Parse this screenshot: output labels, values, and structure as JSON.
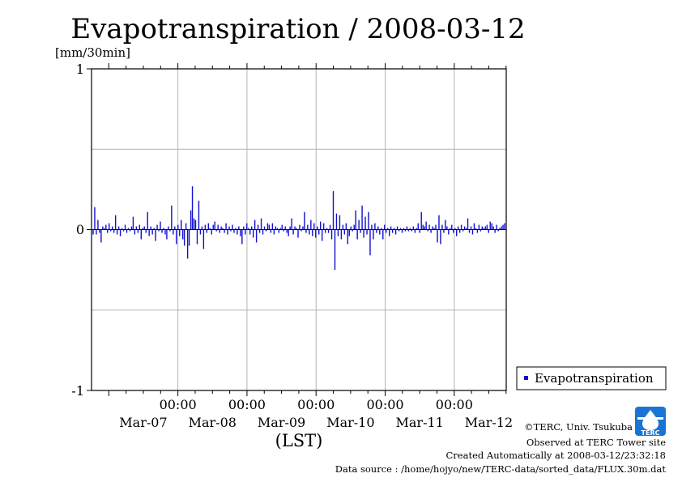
{
  "colors": {
    "series": "#1010cc",
    "grid": "#b4b4b4",
    "axis": "#000000",
    "logo": "#1a75d2"
  },
  "chart_data": {
    "type": "bar",
    "title": "Evapotranspiration / 2008-03-12",
    "unit_label": "[mm/30min]",
    "xlabel": "(LST)",
    "ylabel": "",
    "ylim": [
      -1,
      1
    ],
    "yticks": [
      "1",
      "0",
      "-1"
    ],
    "xlim_days": [
      0,
      6
    ],
    "x_time_label": "00:00",
    "x_date_labels": [
      "Mar-07",
      "Mar-08",
      "Mar-09",
      "Mar-10",
      "Mar-11",
      "Mar-12"
    ],
    "grid": true,
    "legend_position": "outside-right-bottom",
    "series": [
      {
        "name": "Evapotranspiration",
        "color": "#1010cc",
        "values": [
          -0.03,
          0.14,
          -0.03,
          0.06,
          -0.02,
          -0.08,
          0.02,
          0.01,
          0.03,
          -0.02,
          0.04,
          -0.01,
          0.02,
          -0.02,
          0.09,
          -0.03,
          0.02,
          -0.04,
          0.01,
          -0.01,
          0.03,
          -0.02,
          0.01,
          -0.01,
          0.02,
          0.08,
          -0.03,
          0.02,
          -0.02,
          0.03,
          -0.06,
          0.01,
          0.02,
          -0.02,
          0.11,
          -0.04,
          0.02,
          -0.03,
          0.01,
          -0.07,
          0.03,
          -0.01,
          0.05,
          -0.02,
          0.01,
          -0.03,
          -0.06,
          0.02,
          -0.01,
          0.15,
          -0.03,
          0.02,
          -0.09,
          0.03,
          -0.04,
          0.06,
          -0.06,
          -0.1,
          0.04,
          -0.18,
          -0.1,
          0.12,
          0.27,
          0.07,
          0.06,
          -0.09,
          0.18,
          -0.03,
          0.02,
          -0.12,
          0.03,
          -0.02,
          0.04,
          0.01,
          -0.03,
          0.03,
          0.05,
          -0.01,
          0.03,
          -0.02,
          0.02,
          0.01,
          -0.02,
          0.04,
          -0.03,
          0.02,
          -0.01,
          0.03,
          -0.02,
          0.01,
          -0.03,
          0.02,
          -0.04,
          -0.09,
          0.02,
          -0.03,
          0.04,
          0.01,
          -0.03,
          0.02,
          -0.05,
          0.06,
          -0.08,
          0.03,
          -0.02,
          0.07,
          -0.03,
          0.02,
          -0.01,
          0.04,
          0.03,
          -0.02,
          0.04,
          -0.03,
          0.02,
          0.01,
          -0.02,
          0.01,
          0.03,
          -0.01,
          0.02,
          -0.02,
          -0.04,
          0.02,
          0.07,
          -0.03,
          0.02,
          0.01,
          -0.05,
          0.03,
          -0.01,
          0.02,
          0.11,
          -0.02,
          0.03,
          -0.03,
          0.06,
          -0.04,
          0.04,
          -0.05,
          0.02,
          -0.03,
          0.05,
          -0.07,
          0.04,
          -0.02,
          0.01,
          -0.02,
          0.03,
          -0.06,
          0.24,
          -0.25,
          0.1,
          -0.04,
          0.09,
          -0.06,
          0.03,
          -0.03,
          0.04,
          -0.09,
          -0.04,
          0.02,
          -0.01,
          0.03,
          0.12,
          -0.06,
          0.06,
          -0.02,
          0.15,
          -0.05,
          0.08,
          -0.03,
          0.11,
          -0.16,
          0.03,
          -0.06,
          0.04,
          -0.02,
          0.02,
          -0.03,
          0.01,
          -0.06,
          0.03,
          -0.02,
          0.01,
          -0.04,
          0.02,
          -0.02,
          0.01,
          -0.03,
          0.02,
          -0.01,
          0.01,
          -0.02,
          0.01,
          -0.01,
          0.02,
          -0.01,
          0.01,
          -0.01,
          0.02,
          -0.02,
          0.01,
          0.04,
          -0.02,
          0.11,
          0.03,
          0.02,
          0.05,
          -0.01,
          0.03,
          -0.02,
          0.02,
          0.01,
          0.03,
          -0.08,
          0.09,
          -0.09,
          0.03,
          -0.02,
          0.06,
          0.02,
          -0.03,
          0.01,
          0.03,
          -0.02,
          0.01,
          -0.04,
          0.02,
          -0.02,
          0.03,
          -0.01,
          0.02,
          0.01,
          0.07,
          -0.02,
          0.02,
          -0.03,
          0.04,
          0.01,
          -0.02,
          0.03,
          -0.01,
          0.02,
          0.01,
          0.02,
          0.03,
          -0.02,
          0.05,
          0.04,
          0.02,
          -0.02,
          0.03,
          -0.01,
          0.01,
          0.02,
          0.03,
          0.04
        ]
      }
    ]
  },
  "legend": {
    "label": "Evapotranspiration"
  },
  "footer": {
    "copyright": "©TERC, Univ. Tsukuba",
    "observed": "Observed at TERC Tower site",
    "created": "Created Automatically at 2008-03-12/23:32:18",
    "source": "Data source : /home/hojyo/new/TERC-data/sorted_data/FLUX.30m.dat"
  },
  "logo": {
    "text": "TERC",
    "icon": "terc-logo-icon"
  }
}
